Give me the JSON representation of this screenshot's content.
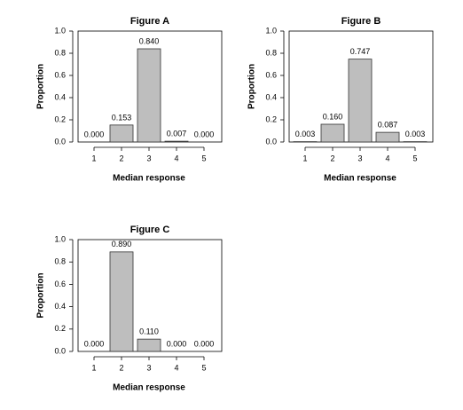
{
  "chart_data": [
    {
      "type": "bar",
      "title": "Figure A",
      "xlabel": "Median response",
      "ylabel": "Proportion",
      "categories": [
        "1",
        "2",
        "3",
        "4",
        "5"
      ],
      "values": [
        0.0,
        0.153,
        0.84,
        0.007,
        0.0
      ],
      "value_labels": [
        "0.000",
        "0.153",
        "0.840",
        "0.007",
        "0.000"
      ],
      "color": "#bebebe",
      "ylim": [
        0,
        1
      ],
      "yticks": [
        {
          "value": 0,
          "label": "0.0"
        },
        0.2,
        0.4,
        0.6,
        0.8,
        {
          "value": 1,
          "label": "1.0"
        }
      ]
    },
    {
      "type": "bar",
      "title": "Figure B",
      "xlabel": "Median response",
      "ylabel": "Proportion",
      "categories": [
        "1",
        "2",
        "3",
        "4",
        "5"
      ],
      "values": [
        0.003,
        0.16,
        0.747,
        0.087,
        0.003
      ],
      "value_labels": [
        "0.003",
        "0.160",
        "0.747",
        "0.087",
        "0.003"
      ],
      "color": "#bebebe",
      "ylim": [
        0,
        1
      ],
      "yticks": [
        {
          "value": 0,
          "label": "0.0"
        },
        0.2,
        0.4,
        0.6,
        0.8,
        {
          "value": 1,
          "label": "1.0"
        }
      ]
    },
    {
      "type": "bar",
      "title": "Figure C",
      "xlabel": "Median response",
      "ylabel": "Proportion",
      "categories": [
        "1",
        "2",
        "3",
        "4",
        "5"
      ],
      "values": [
        0.0,
        0.89,
        0.11,
        0.0,
        0.0
      ],
      "value_labels": [
        "0.000",
        "0.890",
        "0.110",
        "0.000",
        "0.000"
      ],
      "color": "#bebebe",
      "ylim": [
        0,
        1
      ],
      "yticks": [
        {
          "value": 0,
          "label": "0.0"
        },
        0.2,
        0.4,
        0.6,
        0.8,
        {
          "value": 1,
          "label": "1.0"
        }
      ]
    }
  ]
}
